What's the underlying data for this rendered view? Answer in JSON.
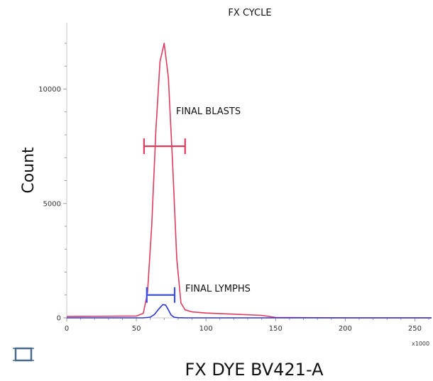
{
  "chart_data": {
    "type": "line",
    "title": "FX CYCLE",
    "xlabel": "FX DYE BV421-A",
    "ylabel": "Count",
    "x_multiplier": "x1000",
    "xlim": [
      0,
      262
    ],
    "ylim": [
      0,
      12900
    ],
    "x_ticks": [
      0,
      50,
      100,
      150,
      200,
      250
    ],
    "y_ticks": [
      0,
      5000,
      10000
    ],
    "grid": false,
    "series": [
      {
        "color": "#e03a5e",
        "x": [
          0,
          50,
          55,
          58,
          61,
          64,
          67,
          70,
          73,
          76,
          79,
          82,
          85,
          90,
          100,
          120,
          140,
          150,
          200,
          262
        ],
        "y": [
          60,
          80,
          200,
          1100,
          4000,
          8200,
          11200,
          12000,
          10500,
          6800,
          2600,
          650,
          350,
          260,
          210,
          160,
          110,
          20,
          0,
          0
        ]
      },
      {
        "color": "#2b35d6",
        "x": [
          0,
          55,
          60,
          63,
          66,
          69,
          71,
          73,
          75,
          77,
          80,
          85,
          262
        ],
        "y": [
          0,
          0,
          30,
          150,
          380,
          580,
          560,
          350,
          120,
          30,
          5,
          0,
          0
        ]
      }
    ],
    "annotations": [
      {
        "label": "FINAL BLASTS",
        "color": "#e03a5e",
        "x_start": 55.5,
        "x_end": 85,
        "y": 7500
      },
      {
        "label": "FINAL LYMPHS",
        "color": "#3b4de8",
        "x_start": 57.5,
        "x_end": 77.5,
        "y": 1000
      }
    ]
  },
  "toolbar": {
    "frame_icon": "frame-square-icon",
    "icon_color": "#4a6a8a"
  }
}
